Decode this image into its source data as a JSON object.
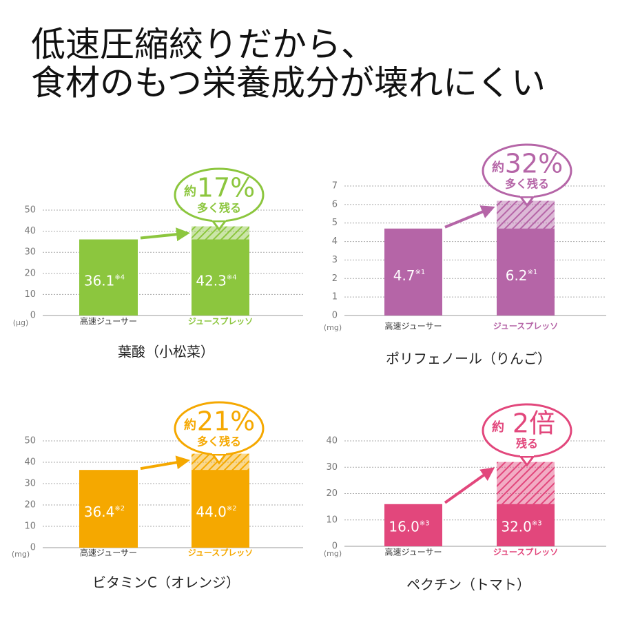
{
  "title_lines": [
    "低速圧縮絞りだから、",
    "食材のもつ栄養成分が壊れにくい"
  ],
  "chart_data": [
    {
      "type": "bar",
      "title": "葉酸（小松菜）",
      "unit": "(μg)",
      "categories": [
        "高速ジューサー",
        "ジュースプレッソ"
      ],
      "values": [
        36.1,
        42.3
      ],
      "value_labels": [
        "36.1",
        "42.3"
      ],
      "footnotes": [
        "※4",
        "※4"
      ],
      "color": "#8cc63e",
      "ylim": [
        0,
        50
      ],
      "yticks": [
        0,
        10,
        20,
        30,
        40,
        50
      ],
      "grid": true,
      "callout": {
        "prefix": "約",
        "value": "17%",
        "text": "多く残る"
      }
    },
    {
      "type": "bar",
      "title": "ポリフェノール（りんご）",
      "unit": "(mg)",
      "categories": [
        "高速ジューサー",
        "ジュースプレッソ"
      ],
      "values": [
        4.7,
        6.2
      ],
      "value_labels": [
        "4.7",
        "6.2"
      ],
      "footnotes": [
        "※1",
        "※1"
      ],
      "color": "#b565a7",
      "ylim": [
        0,
        7
      ],
      "yticks": [
        0,
        1,
        2,
        3,
        4,
        5,
        6,
        7
      ],
      "grid": true,
      "callout": {
        "prefix": "約",
        "value": "32%",
        "text": "多く残る"
      }
    },
    {
      "type": "bar",
      "title": "ビタミンC（オレンジ）",
      "unit": "(mg)",
      "categories": [
        "高速ジューサー",
        "ジュースプレッソ"
      ],
      "values": [
        36.4,
        44.0
      ],
      "value_labels": [
        "36.4",
        "44.0"
      ],
      "footnotes": [
        "※2",
        "※2"
      ],
      "color": "#f5a800",
      "ylim": [
        0,
        50
      ],
      "yticks": [
        0,
        10,
        20,
        30,
        40,
        50
      ],
      "grid": true,
      "callout": {
        "prefix": "約",
        "value": "21%",
        "text": "多く残る"
      }
    },
    {
      "type": "bar",
      "title": "ペクチン（トマト）",
      "unit": "(mg)",
      "categories": [
        "高速ジューサー",
        "ジュースプレッソ"
      ],
      "values": [
        16.0,
        32.0
      ],
      "value_labels": [
        "16.0",
        "32.0"
      ],
      "footnotes": [
        "※3",
        "※3"
      ],
      "color": "#e2477c",
      "ylim": [
        0,
        40
      ],
      "yticks": [
        0,
        10,
        20,
        30,
        40
      ],
      "grid": true,
      "callout": {
        "prefix": "約",
        "value": "2倍",
        "text": "残る"
      }
    }
  ]
}
